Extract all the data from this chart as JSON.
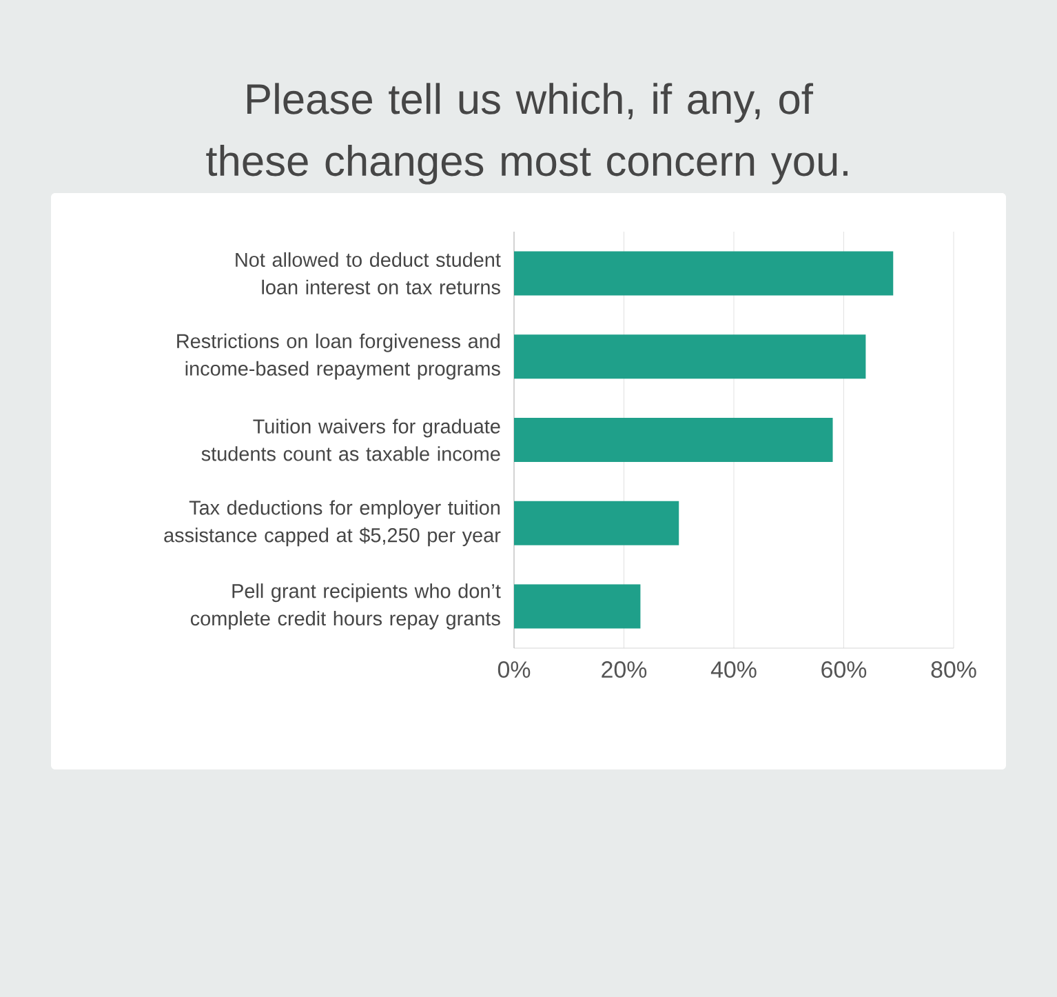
{
  "chart_data": {
    "type": "bar",
    "orientation": "horizontal",
    "title": "Please tell us which, if any, of these changes most concern you.",
    "categories": [
      "Not allowed to deduct student loan interest on tax returns",
      "Restrictions on loan forgiveness and income-based repayment programs",
      "Tuition waivers for graduate students count as taxable income",
      "Tax deductions for employer tuition assistance capped at $5,250 per year",
      "Pell grant recipients who don’t complete credit hours repay grants"
    ],
    "values": [
      69,
      64,
      58,
      30,
      23
    ],
    "color": "#1fa08a",
    "xlim": [
      0,
      80
    ],
    "xticks": [
      {
        "value": 0,
        "label": "0%"
      },
      {
        "value": 20,
        "label": "20%"
      },
      {
        "value": 40,
        "label": "40%"
      },
      {
        "value": 60,
        "label": "60%"
      },
      {
        "value": 80,
        "label": "80%"
      }
    ],
    "grid": "x"
  }
}
